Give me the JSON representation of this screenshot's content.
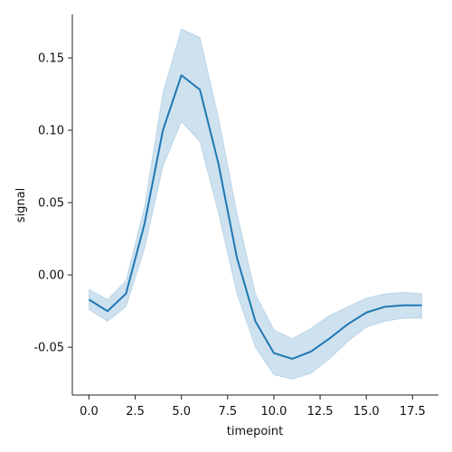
{
  "chart_data": {
    "type": "line",
    "title": "",
    "xlabel": "timepoint",
    "ylabel": "signal",
    "xlim": [
      -0.9,
      18.9
    ],
    "ylim": [
      -0.083,
      0.18
    ],
    "xticks": [
      0.0,
      2.5,
      5.0,
      7.5,
      10.0,
      12.5,
      15.0,
      17.5
    ],
    "xtick_labels": [
      "0.0",
      "2.5",
      "5.0",
      "7.5",
      "10.0",
      "12.5",
      "15.0",
      "17.5"
    ],
    "yticks": [
      -0.05,
      0.0,
      0.05,
      0.1,
      0.15
    ],
    "ytick_labels": [
      "-0.05",
      "0.00",
      "0.05",
      "0.10",
      "0.15"
    ],
    "grid": false,
    "colors": {
      "line": "#1f77b4",
      "band": "#1f77b4"
    },
    "x": [
      0,
      1,
      2,
      3,
      4,
      5,
      6,
      7,
      8,
      9,
      10,
      11,
      12,
      13,
      14,
      15,
      16,
      17,
      18
    ],
    "series": [
      {
        "values": [
          -0.017,
          -0.025,
          -0.013,
          0.035,
          0.1,
          0.138,
          0.128,
          0.077,
          0.012,
          -0.032,
          -0.054,
          -0.058,
          -0.053,
          -0.044,
          -0.034,
          -0.026,
          -0.022,
          -0.021,
          -0.021
        ],
        "ci_low": [
          -0.024,
          -0.032,
          -0.022,
          0.018,
          0.075,
          0.106,
          0.092,
          0.043,
          -0.013,
          -0.05,
          -0.069,
          -0.072,
          -0.068,
          -0.058,
          -0.046,
          -0.036,
          -0.032,
          -0.03,
          -0.03
        ],
        "ci_high": [
          -0.01,
          -0.017,
          -0.004,
          0.047,
          0.126,
          0.17,
          0.164,
          0.109,
          0.043,
          -0.013,
          -0.038,
          -0.044,
          -0.037,
          -0.028,
          -0.022,
          -0.016,
          -0.013,
          -0.012,
          -0.013
        ]
      }
    ]
  }
}
